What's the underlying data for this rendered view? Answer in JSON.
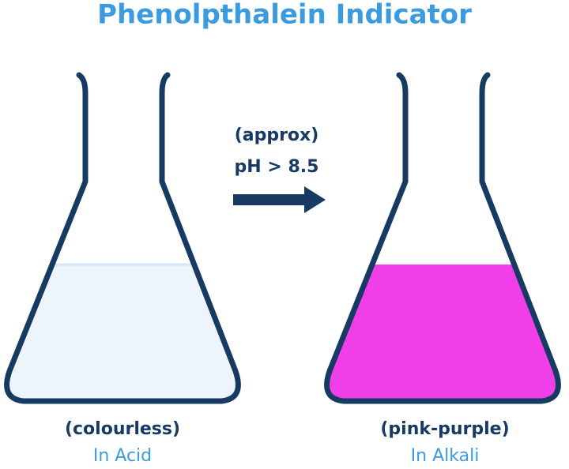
{
  "title": "Phenolpthalein Indicator",
  "arrow_label": [
    "(approx)",
    "pH > 8.5"
  ],
  "flasks": [
    {
      "colour": "(colourless)",
      "condition": "In Acid"
    },
    {
      "colour": "(pink-purple)",
      "condition": "In Alkali"
    }
  ]
}
